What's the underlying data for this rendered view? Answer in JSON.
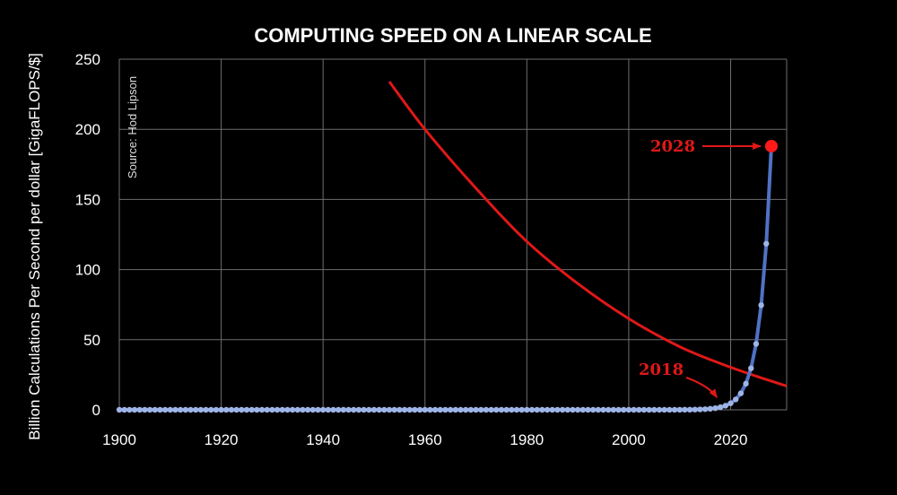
{
  "colors": {
    "background": "#000000",
    "grid": "#6e6e6e",
    "series": "#4f72c4",
    "markers": "#9fb4e6",
    "annotation": "#e01818",
    "highlight_point": "#ff1a1a",
    "text": "#ffffff"
  },
  "chart_data": {
    "type": "line",
    "title": "COMPUTING SPEED ON A LINEAR SCALE",
    "xlabel": "",
    "ylabel": "Billion Calculations Per Second per dollar [GigaFLOPS/$]",
    "source_note": "Source: Hod Lipson",
    "xlim": [
      1900,
      2031
    ],
    "ylim": [
      0,
      250
    ],
    "xticks": [
      1900,
      1920,
      1940,
      1960,
      1980,
      2000,
      2020
    ],
    "yticks": [
      0,
      50,
      100,
      150,
      200,
      250
    ],
    "grid": true,
    "legend": "none",
    "series": [
      {
        "label": "",
        "growth": "exponential, doubling every ~1.5 years",
        "x_start": 1900,
        "x_end": 2028,
        "x_step": 1,
        "final_value": 188,
        "doubling_years": 1.5
      }
    ],
    "trend_curve": {
      "label": "",
      "x": [
        1953,
        1960,
        1970,
        1980,
        1990,
        2000,
        2010,
        2018,
        2025,
        2031
      ],
      "y": [
        234,
        200,
        158,
        120,
        90,
        65,
        45,
        33,
        24,
        17
      ]
    },
    "annotations": [
      {
        "text": "2028",
        "x": 2028,
        "y": 188,
        "arrow": true
      },
      {
        "text": "2018",
        "x": 2018,
        "y": 5,
        "arrow": true
      }
    ]
  }
}
